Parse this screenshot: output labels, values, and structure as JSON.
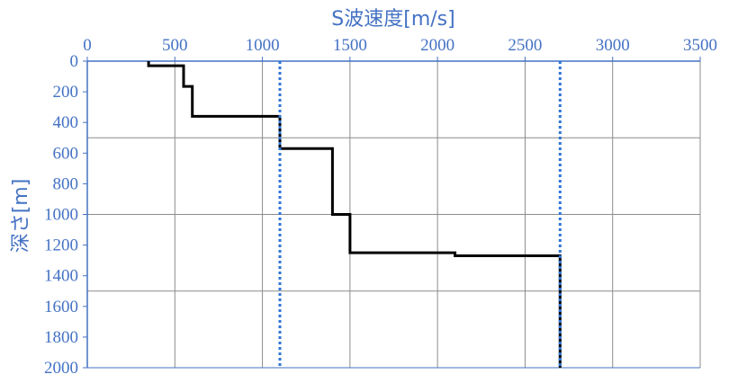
{
  "chart_data": {
    "type": "line",
    "title": "",
    "xlabel": "S波速度[m/s]",
    "ylabel": "深さ[m]",
    "xlim": [
      0,
      3500
    ],
    "ylim": [
      0,
      2000
    ],
    "y_inverted": true,
    "x_axis_position": "top",
    "x_ticks": [
      "0",
      "500",
      "1000",
      "1500",
      "2000",
      "2500",
      "3000",
      "3500"
    ],
    "y_ticks": [
      "0",
      "200",
      "400",
      "600",
      "800",
      "1000",
      "1200",
      "1400",
      "1600",
      "1800",
      "2000"
    ],
    "grid": {
      "vertical_every": 500,
      "horizontal_every": 500
    },
    "series": [
      {
        "style": "solid",
        "color": "#000000",
        "points": [
          [
            350,
            0
          ],
          [
            350,
            30
          ],
          [
            550,
            30
          ],
          [
            550,
            165
          ],
          [
            600,
            165
          ],
          [
            600,
            360
          ],
          [
            1100,
            360
          ],
          [
            1100,
            570
          ],
          [
            1400,
            570
          ],
          [
            1400,
            1000
          ],
          [
            1500,
            1000
          ],
          [
            1500,
            1250
          ],
          [
            2100,
            1250
          ],
          [
            2100,
            1270
          ],
          [
            2700,
            1270
          ],
          [
            2700,
            2000
          ]
        ]
      },
      {
        "style": "dotted",
        "color": "#2e75d6",
        "points": [
          [
            1100,
            0
          ],
          [
            1100,
            2000
          ]
        ]
      },
      {
        "style": "dotted",
        "color": "#2e75d6",
        "points": [
          [
            2700,
            0
          ],
          [
            2700,
            2000
          ]
        ]
      }
    ],
    "colors": {
      "axis_text": "#4472c4",
      "grid": "#8c8c8c",
      "axis_line": "#4472c4"
    }
  }
}
